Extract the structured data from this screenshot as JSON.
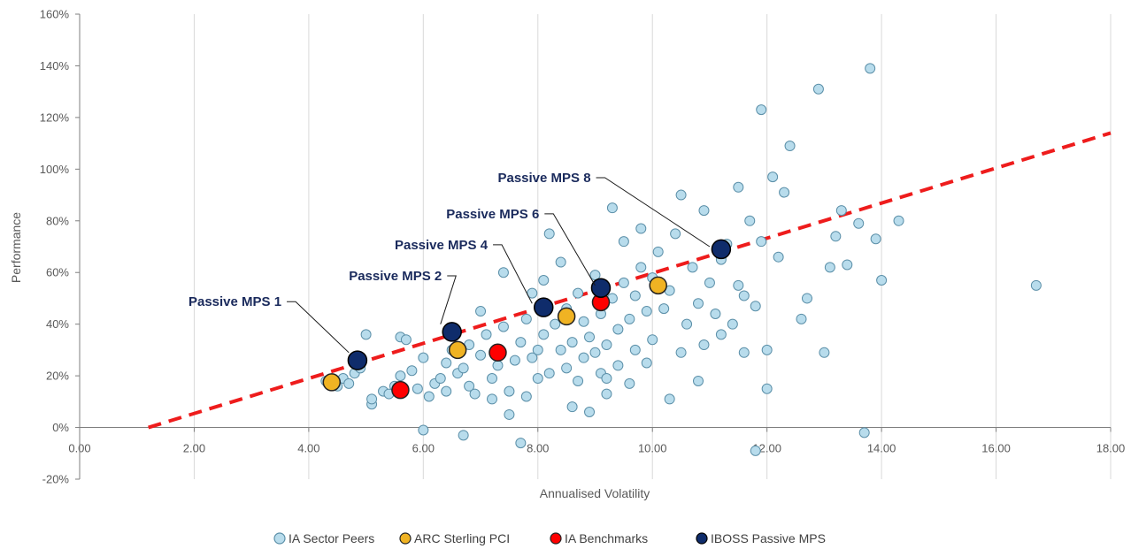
{
  "chart_data": {
    "type": "scatter",
    "xlabel": "Annualised Volatility",
    "ylabel": "Performance",
    "xlim": [
      0,
      18
    ],
    "ylim": [
      -20,
      160
    ],
    "x_ticks": [
      "0.00",
      "2.00",
      "4.00",
      "6.00",
      "8.00",
      "10.00",
      "12.00",
      "14.00",
      "16.00",
      "18.00"
    ],
    "y_ticks": [
      "-20%",
      "0%",
      "20%",
      "40%",
      "60%",
      "80%",
      "100%",
      "120%",
      "140%",
      "160%"
    ],
    "grid": "vertical",
    "legend_position": "bottom",
    "colors": {
      "peers": "#b8dcec",
      "arc": "#f0b323",
      "bench": "#ff0000",
      "mps": "#0f2c6b",
      "trend": "#ee1c1c",
      "grid": "#d9d9d9"
    },
    "trendline": {
      "from": [
        1.2,
        0
      ],
      "to": [
        18,
        114
      ]
    },
    "series": [
      {
        "name": "IA Sector Peers",
        "points": [
          [
            4.3,
            18
          ],
          [
            4.5,
            16
          ],
          [
            4.6,
            19
          ],
          [
            4.7,
            17
          ],
          [
            4.8,
            21
          ],
          [
            4.9,
            23
          ],
          [
            5.0,
            36
          ],
          [
            5.1,
            9
          ],
          [
            5.1,
            11
          ],
          [
            5.3,
            14
          ],
          [
            5.4,
            13
          ],
          [
            5.5,
            16
          ],
          [
            5.6,
            20
          ],
          [
            5.6,
            35
          ],
          [
            5.7,
            34
          ],
          [
            5.8,
            22
          ],
          [
            5.9,
            15
          ],
          [
            6.0,
            27
          ],
          [
            6.1,
            12
          ],
          [
            6.2,
            17
          ],
          [
            6.3,
            19
          ],
          [
            6.4,
            14
          ],
          [
            6.4,
            25
          ],
          [
            6.5,
            30
          ],
          [
            6.5,
            38
          ],
          [
            6.6,
            21
          ],
          [
            6.7,
            23
          ],
          [
            6.8,
            16
          ],
          [
            6.8,
            32
          ],
          [
            6.9,
            13
          ],
          [
            7.0,
            28
          ],
          [
            7.0,
            45
          ],
          [
            7.1,
            36
          ],
          [
            7.2,
            11
          ],
          [
            7.2,
            19
          ],
          [
            7.3,
            24
          ],
          [
            7.4,
            39
          ],
          [
            7.4,
            60
          ],
          [
            7.5,
            14
          ],
          [
            7.6,
            26
          ],
          [
            7.7,
            33
          ],
          [
            7.8,
            12
          ],
          [
            7.8,
            42
          ],
          [
            7.9,
            27
          ],
          [
            7.9,
            52
          ],
          [
            8.0,
            19
          ],
          [
            8.0,
            30
          ],
          [
            8.1,
            36
          ],
          [
            8.1,
            57
          ],
          [
            8.2,
            21
          ],
          [
            8.2,
            75
          ],
          [
            8.3,
            40
          ],
          [
            8.4,
            30
          ],
          [
            8.4,
            64
          ],
          [
            8.5,
            23
          ],
          [
            8.5,
            46
          ],
          [
            8.6,
            33
          ],
          [
            8.7,
            18
          ],
          [
            8.7,
            52
          ],
          [
            8.8,
            27
          ],
          [
            8.8,
            41
          ],
          [
            8.9,
            6
          ],
          [
            8.9,
            35
          ],
          [
            9.0,
            29
          ],
          [
            9.0,
            59
          ],
          [
            9.1,
            21
          ],
          [
            9.1,
            44
          ],
          [
            9.2,
            13
          ],
          [
            9.2,
            32
          ],
          [
            9.3,
            50
          ],
          [
            9.3,
            85
          ],
          [
            9.4,
            24
          ],
          [
            9.4,
            38
          ],
          [
            9.5,
            56
          ],
          [
            9.5,
            72
          ],
          [
            9.6,
            17
          ],
          [
            9.6,
            42
          ],
          [
            9.7,
            30
          ],
          [
            9.7,
            51
          ],
          [
            9.8,
            62
          ],
          [
            9.8,
            77
          ],
          [
            9.9,
            25
          ],
          [
            9.9,
            45
          ],
          [
            10.0,
            34
          ],
          [
            10.0,
            58
          ],
          [
            10.1,
            68
          ],
          [
            10.2,
            46
          ],
          [
            10.3,
            11
          ],
          [
            10.3,
            53
          ],
          [
            10.4,
            75
          ],
          [
            10.5,
            29
          ],
          [
            10.5,
            90
          ],
          [
            10.6,
            40
          ],
          [
            10.7,
            62
          ],
          [
            10.8,
            18
          ],
          [
            10.8,
            48
          ],
          [
            10.9,
            32
          ],
          [
            10.9,
            84
          ],
          [
            11.0,
            56
          ],
          [
            11.1,
            44
          ],
          [
            11.2,
            36
          ],
          [
            11.2,
            65
          ],
          [
            11.3,
            71
          ],
          [
            11.4,
            40
          ],
          [
            11.5,
            55
          ],
          [
            11.5,
            93
          ],
          [
            11.6,
            29
          ],
          [
            11.6,
            51
          ],
          [
            11.7,
            80
          ],
          [
            11.8,
            47
          ],
          [
            11.9,
            72
          ],
          [
            11.9,
            123
          ],
          [
            12.0,
            30
          ],
          [
            12.0,
            15
          ],
          [
            12.1,
            97
          ],
          [
            12.2,
            66
          ],
          [
            12.3,
            91
          ],
          [
            12.4,
            109
          ],
          [
            12.6,
            42
          ],
          [
            12.7,
            50
          ],
          [
            12.9,
            131
          ],
          [
            13.0,
            29
          ],
          [
            13.1,
            62
          ],
          [
            13.2,
            74
          ],
          [
            13.3,
            84
          ],
          [
            13.4,
            63
          ],
          [
            13.6,
            79
          ],
          [
            13.7,
            -2
          ],
          [
            13.8,
            139
          ],
          [
            13.9,
            73
          ],
          [
            14.0,
            57
          ],
          [
            14.3,
            80
          ],
          [
            16.7,
            55
          ],
          [
            11.8,
            -9
          ],
          [
            7.7,
            -6
          ],
          [
            6.7,
            -3
          ],
          [
            6.0,
            -1
          ],
          [
            9.2,
            19
          ],
          [
            8.6,
            8
          ],
          [
            7.5,
            5
          ]
        ]
      },
      {
        "name": "ARC Sterling PCI",
        "points": [
          [
            4.4,
            17.5
          ],
          [
            6.6,
            30
          ],
          [
            8.5,
            43
          ],
          [
            10.1,
            55
          ]
        ]
      },
      {
        "name": "IA Benchmarks",
        "points": [
          [
            5.6,
            14.5
          ],
          [
            7.3,
            29
          ],
          [
            9.1,
            48.5
          ],
          [
            11.2,
            69
          ]
        ]
      },
      {
        "name": "IBOSS Passive MPS",
        "points": [
          [
            4.85,
            26
          ],
          [
            6.5,
            37
          ],
          [
            8.1,
            46.5
          ],
          [
            9.1,
            54
          ],
          [
            11.2,
            69
          ]
        ]
      }
    ],
    "annotations": [
      {
        "text": "Passive MPS 1",
        "series_point": 0,
        "lx": 1.9,
        "ly": 47,
        "ex": 4.7,
        "ey": 29
      },
      {
        "text": "Passive MPS 2",
        "series_point": 1,
        "lx": 4.7,
        "ly": 57,
        "ex": 6.3,
        "ey": 40
      },
      {
        "text": "Passive MPS 4",
        "series_point": 2,
        "lx": 5.5,
        "ly": 69,
        "ex": 7.9,
        "ey": 48
      },
      {
        "text": "Passive MPS 6",
        "series_point": 3,
        "lx": 6.4,
        "ly": 81,
        "ex": 9.0,
        "ey": 55
      },
      {
        "text": "Passive MPS 8",
        "series_point": 4,
        "lx": 7.3,
        "ly": 95,
        "ex": 11.0,
        "ey": 70
      }
    ]
  }
}
